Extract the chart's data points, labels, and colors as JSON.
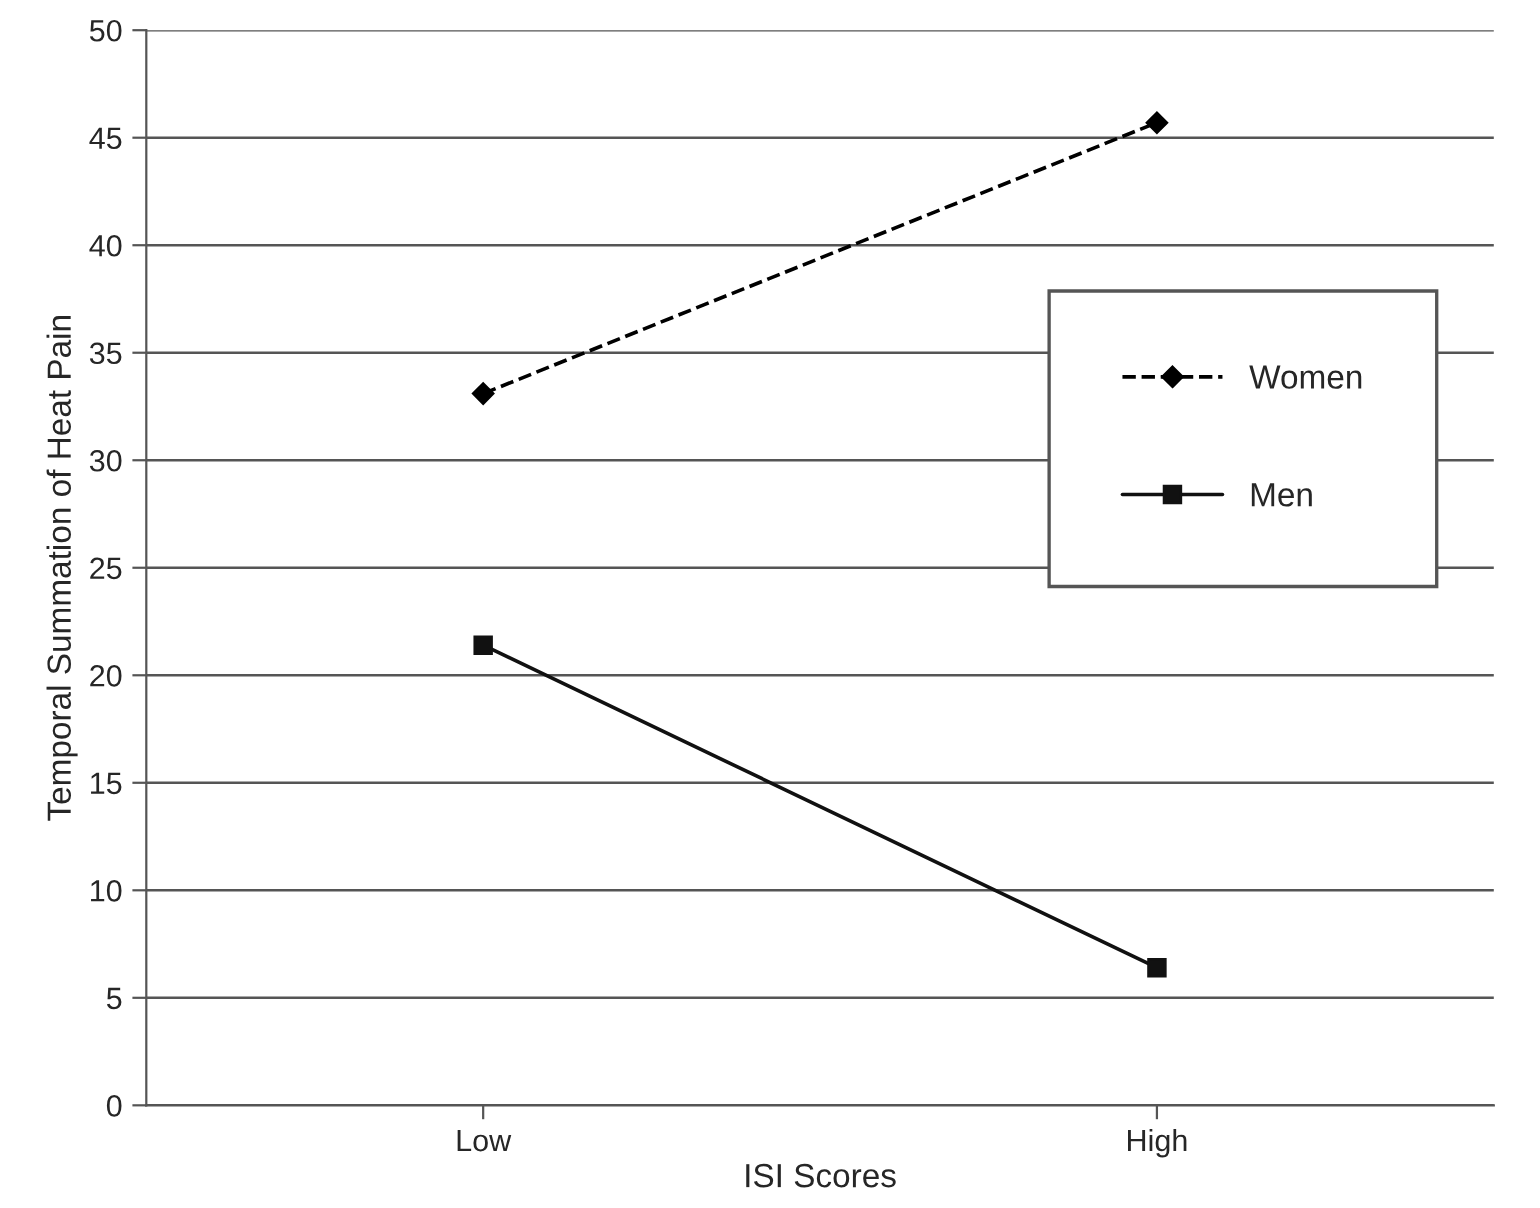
{
  "chart_data": {
    "type": "line",
    "xlabel": "ISI Scores",
    "ylabel": "Temporal Summation of Heat Pain",
    "categories": [
      "Low",
      "High"
    ],
    "series": [
      {
        "name": "Women",
        "color": "#000000",
        "values": [
          33.1,
          45.7
        ],
        "marker": "diamond",
        "line_style": "dashed"
      },
      {
        "name": "Men",
        "color": "#111111",
        "values": [
          21.4,
          6.4
        ],
        "marker": "square",
        "line_style": "solid"
      }
    ],
    "ylim": [
      0,
      50
    ],
    "yticks": [
      0,
      5,
      10,
      15,
      20,
      25,
      30,
      35,
      40,
      45,
      50
    ],
    "grid": "y",
    "legend": "right"
  }
}
